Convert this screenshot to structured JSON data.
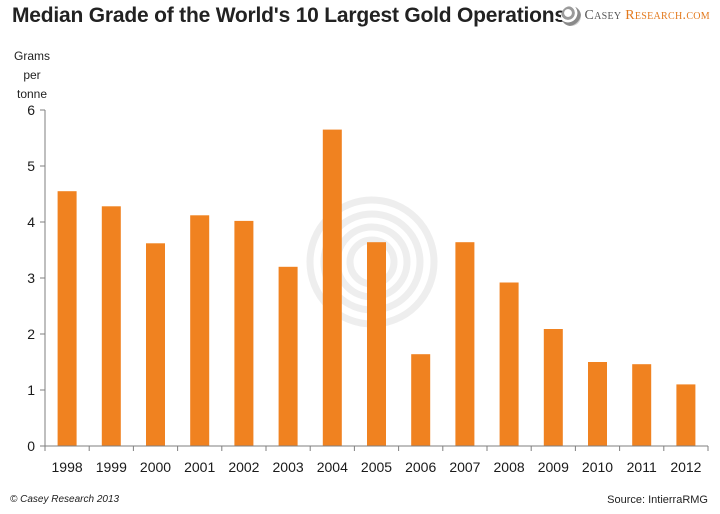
{
  "chart_data": {
    "type": "bar",
    "title": "Median Grade of the World's 10 Largest Gold Operations",
    "ylabel": "Grams per tonne",
    "xlabel": "",
    "categories": [
      "1998",
      "1999",
      "2000",
      "2001",
      "2002",
      "2003",
      "2004",
      "2005",
      "2006",
      "2007",
      "2008",
      "2009",
      "2010",
      "2011",
      "2012"
    ],
    "values": [
      4.55,
      4.28,
      3.62,
      4.12,
      4.02,
      3.2,
      5.65,
      3.64,
      1.64,
      3.64,
      2.92,
      2.09,
      1.5,
      1.46,
      1.1
    ],
    "ylim": [
      0,
      6
    ],
    "yticks": [
      0,
      1,
      2,
      3,
      4,
      5,
      6
    ],
    "grid": false,
    "legend": "none",
    "bar_color": "#f08220"
  },
  "branding": {
    "logo_first": "Casey",
    "logo_second": "Research",
    "logo_domain": ".com"
  },
  "footer": {
    "copyright": "© Casey Research 2013",
    "source": "Source: IntierraRMG"
  },
  "colors": {
    "bar": "#f08220",
    "accent": "#e3791c",
    "axis": "#7f7f7f"
  },
  "icons": {
    "logo": "casey-research-spiral-icon",
    "watermark": "casey-research-spiral-watermark"
  }
}
